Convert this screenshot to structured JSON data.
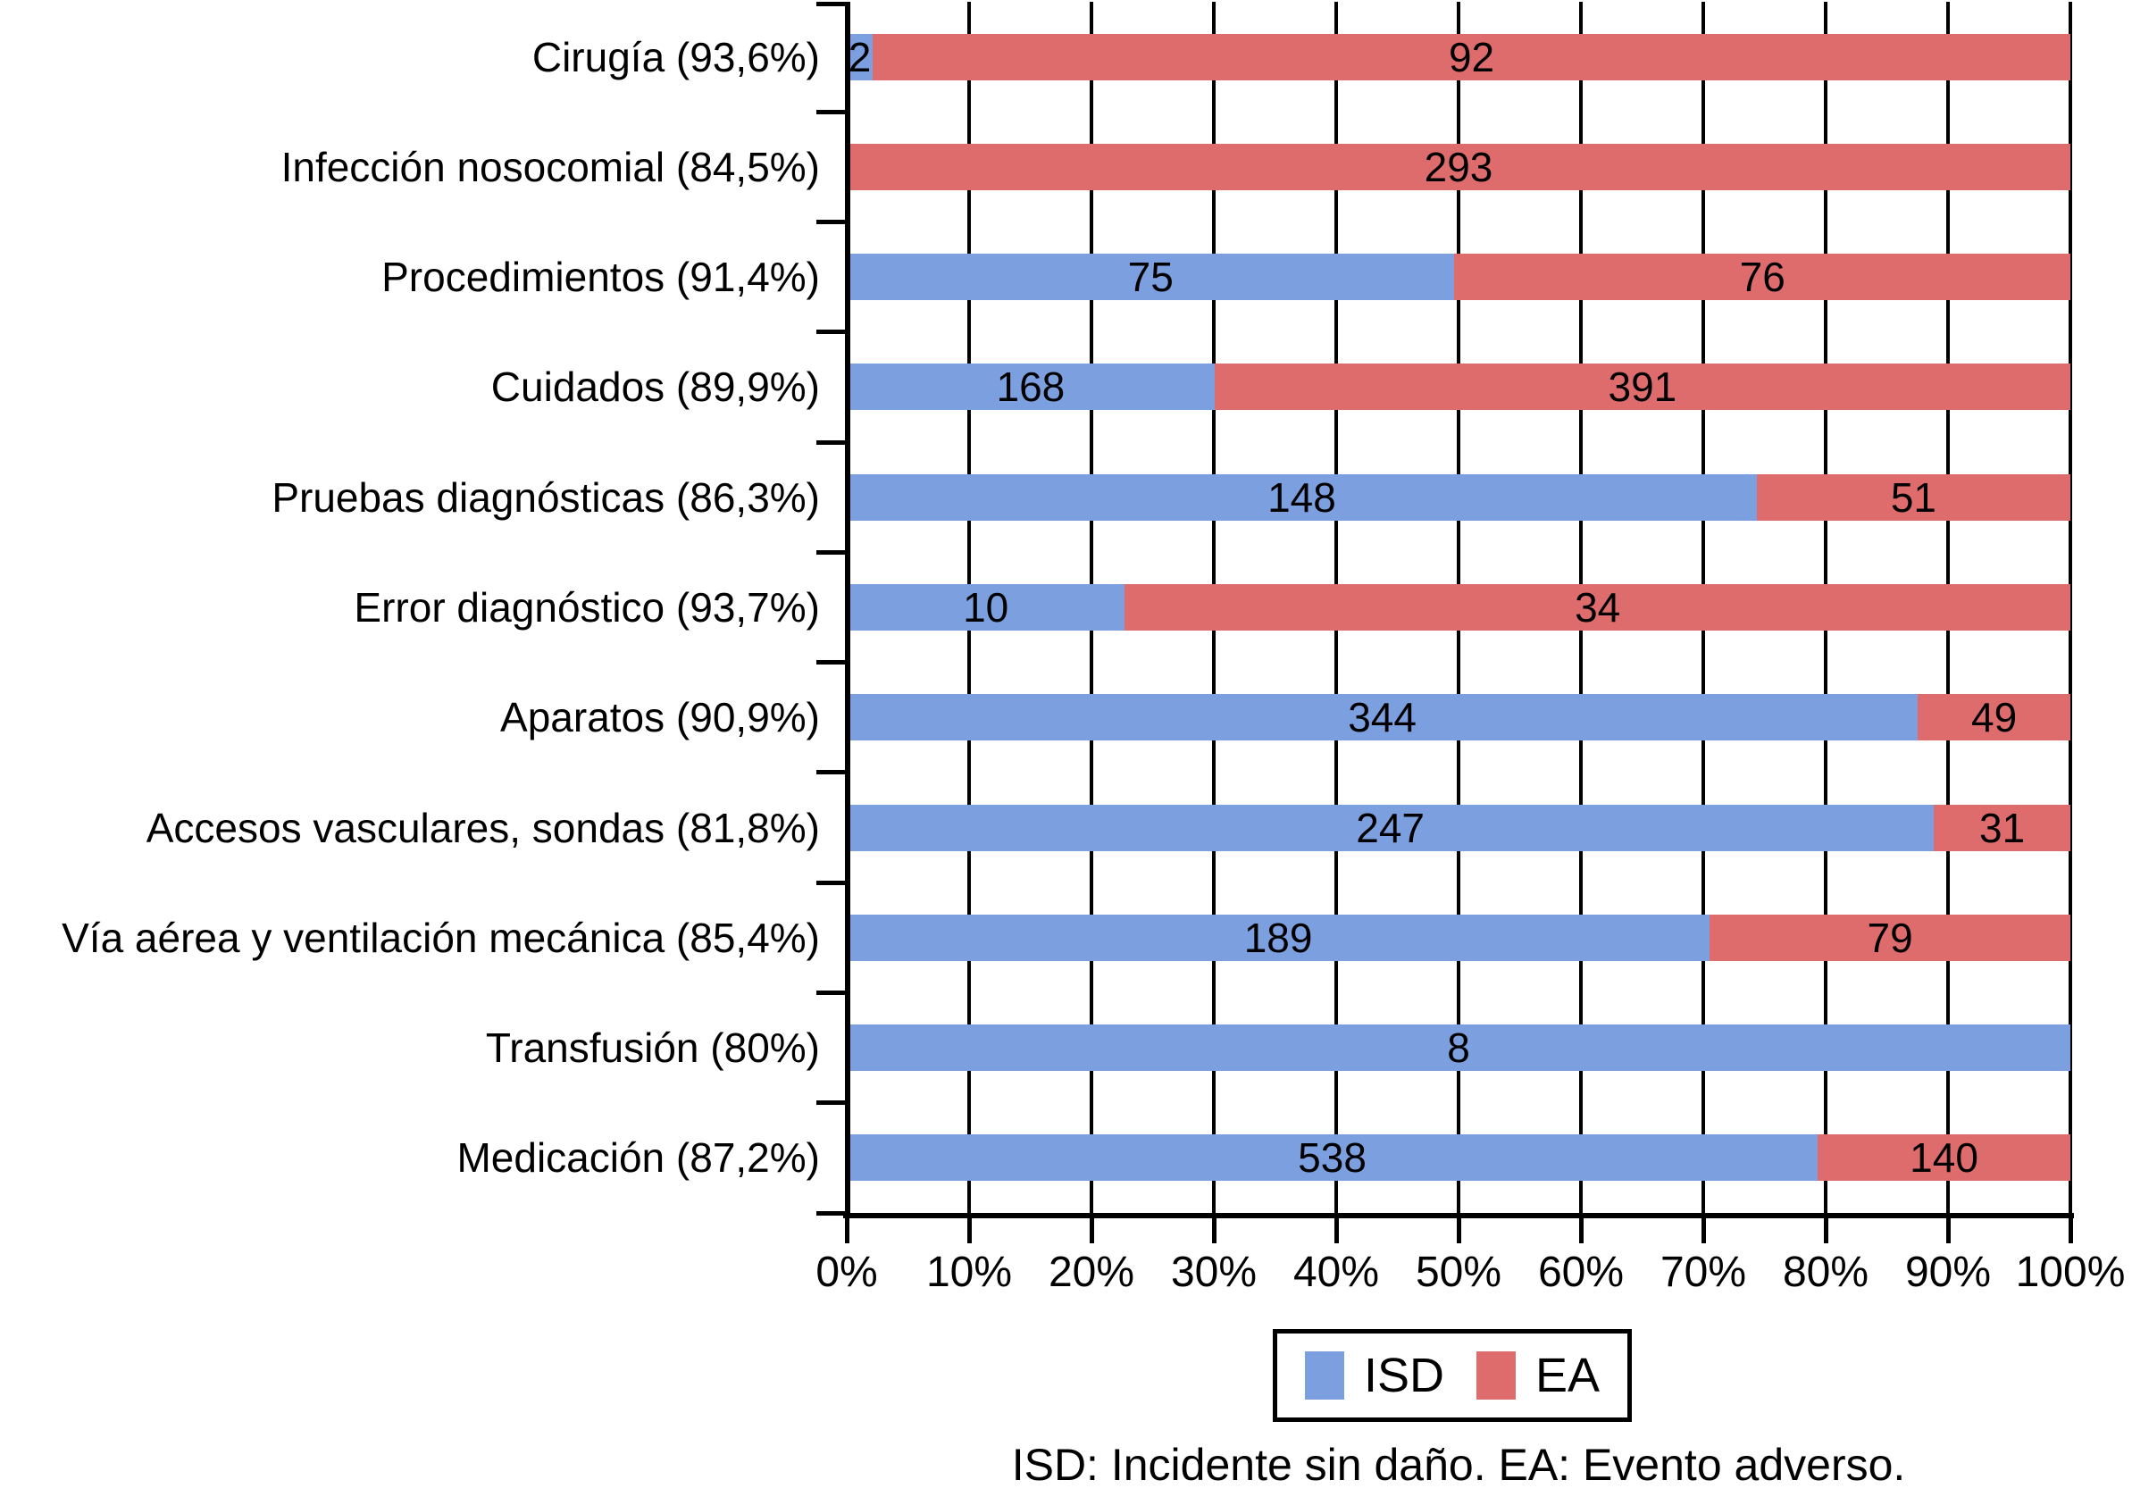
{
  "chart_data": {
    "type": "bar",
    "orientation": "horizontal",
    "stacked": true,
    "normalized_to_100_percent": true,
    "categories": [
      "Cirugía (93,6%)",
      "Infección nosocomial (84,5%)",
      "Procedimientos (91,4%)",
      "Cuidados (89,9%)",
      "Pruebas diagnósticas (86,3%)",
      "Error diagnóstico (93,7%)",
      "Aparatos (90,9%)",
      "Accesos vasculares, sondas (81,8%)",
      "Vía aérea y ventilación mecánica (85,4%)",
      "Transfusión (80%)",
      "Medicación (87,2%)"
    ],
    "series": [
      {
        "name": "ISD",
        "color": "#7C9FE0",
        "values": [
          2,
          0,
          75,
          168,
          148,
          10,
          344,
          247,
          189,
          8,
          538
        ]
      },
      {
        "name": "EA",
        "color": "#DE6C6C",
        "values": [
          92,
          293,
          76,
          391,
          51,
          34,
          49,
          31,
          79,
          0,
          140
        ]
      }
    ],
    "x_axis": {
      "tick_labels": [
        "0%",
        "10%",
        "20%",
        "30%",
        "40%",
        "50%",
        "60%",
        "70%",
        "80%",
        "90%",
        "100%"
      ],
      "range": [
        0,
        100
      ],
      "grid": true
    },
    "legend": {
      "position": "bottom",
      "items": [
        "ISD",
        "EA"
      ]
    },
    "footnote": "ISD: Incidente sin daño. EA: Evento adverso."
  }
}
